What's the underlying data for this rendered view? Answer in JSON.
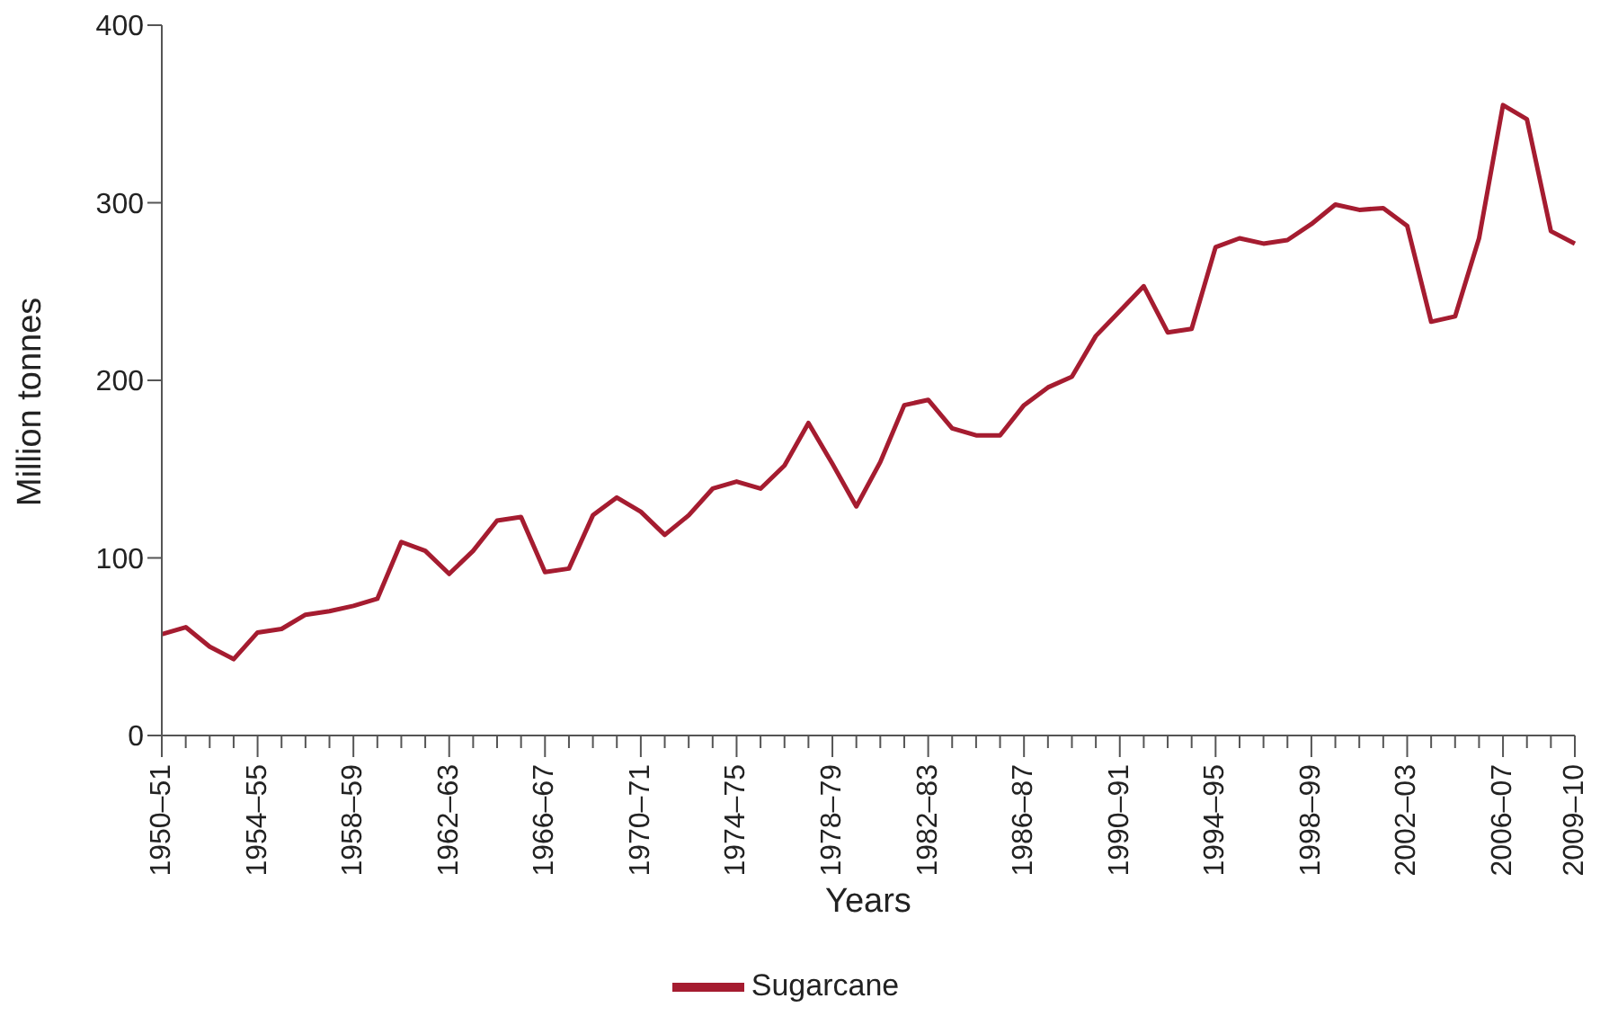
{
  "chart_data": {
    "type": "line",
    "xlabel": "Years",
    "ylabel": "Million tonnes",
    "categories": [
      "1950–51",
      null,
      null,
      null,
      "1954–55",
      null,
      null,
      null,
      "1958–59",
      null,
      null,
      null,
      "1962–63",
      null,
      null,
      null,
      "1966–67",
      null,
      null,
      null,
      "1970–71",
      null,
      null,
      null,
      "1974–75",
      null,
      null,
      null,
      "1978–79",
      null,
      null,
      null,
      "1982–83",
      null,
      null,
      null,
      "1986–87",
      null,
      null,
      null,
      "1990–91",
      null,
      null,
      null,
      "1994–95",
      null,
      null,
      null,
      "1998–99",
      null,
      null,
      null,
      "2002–03",
      null,
      null,
      null,
      "2006–07",
      null,
      null,
      "2009–10"
    ],
    "series": [
      {
        "name": "Sugarcane",
        "color": "#a51c30",
        "values": [
          57,
          61,
          50,
          43,
          58,
          60,
          68,
          70,
          73,
          77,
          109,
          104,
          91,
          104,
          121,
          123,
          92,
          94,
          124,
          134,
          126,
          113,
          124,
          139,
          143,
          139,
          152,
          176,
          153,
          129,
          154,
          186,
          189,
          173,
          169,
          169,
          186,
          196,
          202,
          225,
          239,
          253,
          227,
          229,
          275,
          280,
          277,
          279,
          288,
          299,
          296,
          297,
          287,
          233,
          236,
          280,
          355,
          347,
          284,
          277
        ]
      }
    ],
    "ylim": [
      0,
      400
    ],
    "yticks": [
      0,
      100,
      200,
      300,
      400
    ],
    "grid": false,
    "legend": "bottom",
    "marker": "none",
    "line_style": "solid"
  }
}
